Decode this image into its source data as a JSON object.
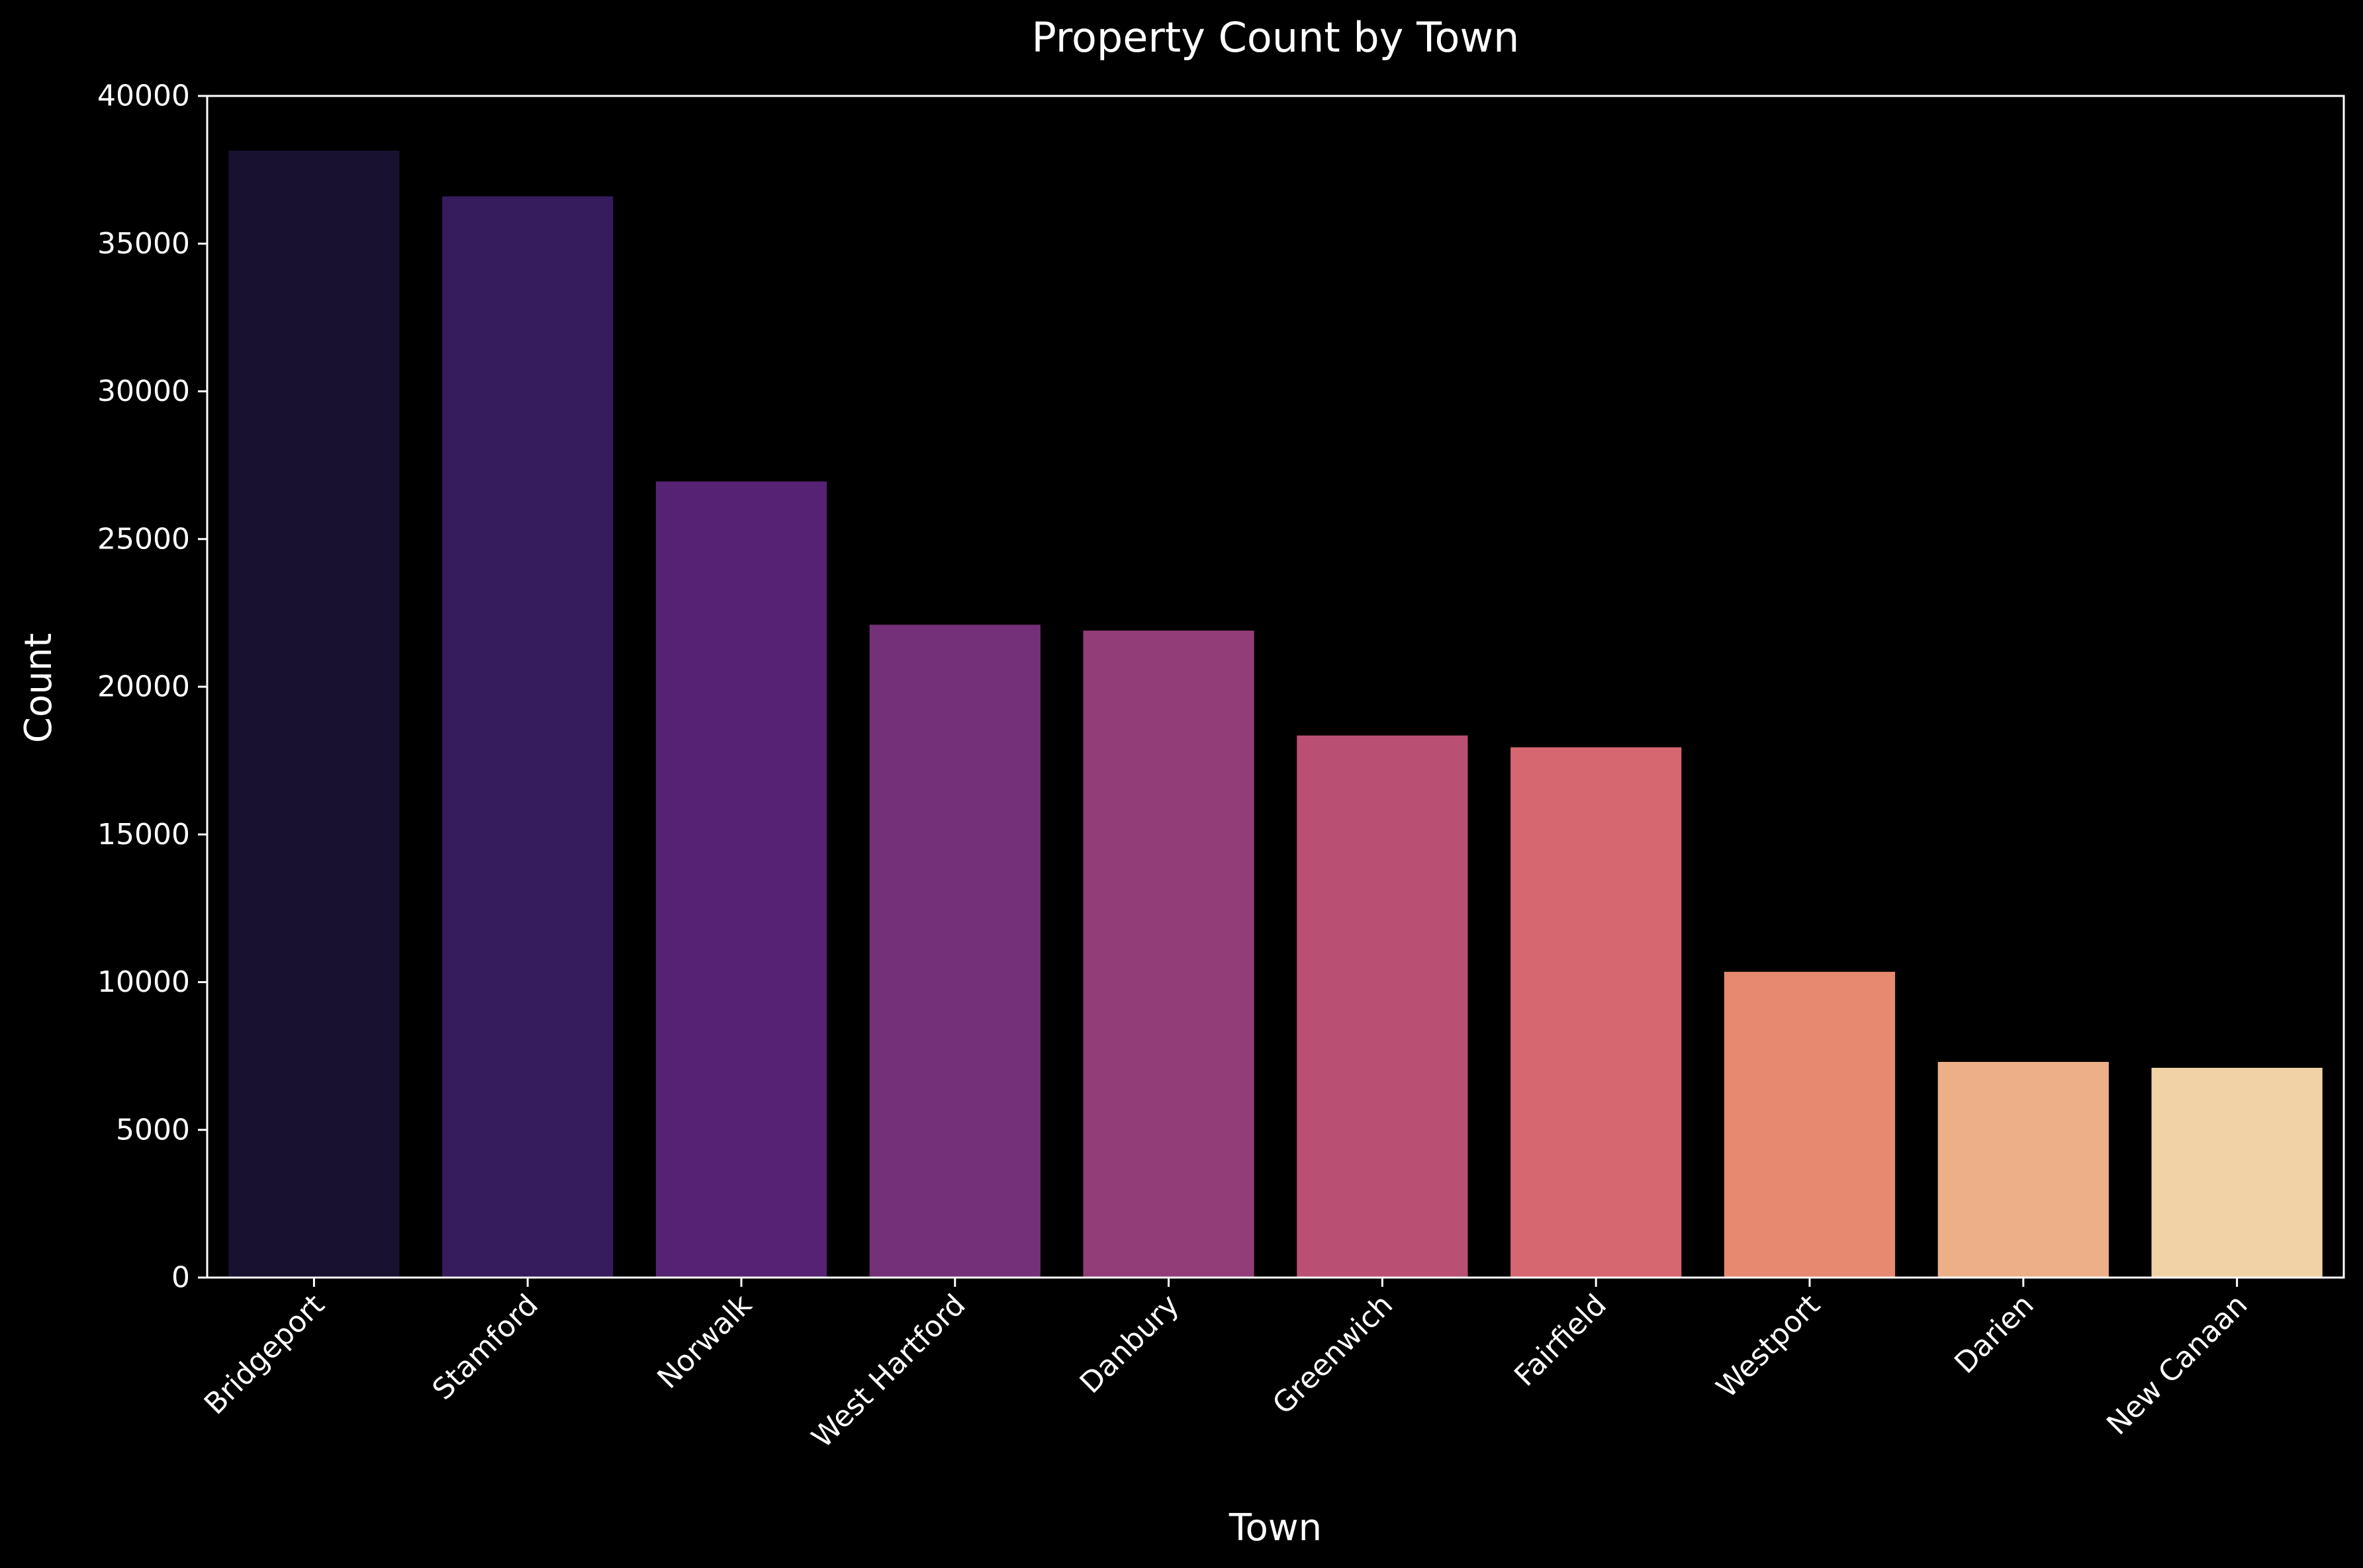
{
  "chart_data": {
    "type": "bar",
    "title": "Property Count by Town",
    "xlabel": "Town",
    "ylabel": "Count",
    "categories": [
      "Bridgeport",
      "Stamford",
      "Norwalk",
      "West Hartford",
      "Danbury",
      "Greenwich",
      "Fairfield",
      "Westport",
      "Darien",
      "New Canaan"
    ],
    "values": [
      38150,
      36600,
      26950,
      22100,
      21900,
      18350,
      17950,
      10350,
      7300,
      7100
    ],
    "colors": [
      "#181230",
      "#361c5d",
      "#562273",
      "#743078",
      "#933d78",
      "#b94f73",
      "#d6666f",
      "#e78970",
      "#ecaf88",
      "#f1d2a6"
    ],
    "ylim": [
      0,
      40000
    ],
    "yticks": [
      0,
      5000,
      10000,
      15000,
      20000,
      25000,
      30000,
      35000,
      40000
    ],
    "grid": false,
    "background": "#000000",
    "axis_color": "#ffffff",
    "text_color": "#ffffff"
  }
}
